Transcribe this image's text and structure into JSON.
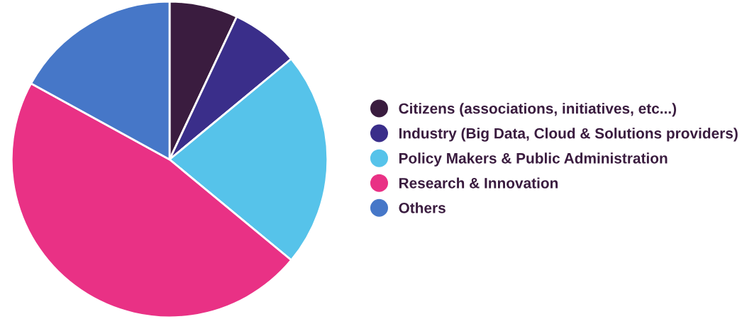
{
  "chart_data": {
    "type": "pie",
    "categories": [
      "Citizens (associations, initiatives, etc...)",
      "Industry (Big Data, Cloud & Solutions providers)",
      "Policy Makers & Public Administration",
      "Research & Innovation",
      "Others"
    ],
    "values": [
      7,
      7,
      22,
      47,
      17
    ],
    "colors": [
      "#3a1c3f",
      "#3a2e8a",
      "#56c3ea",
      "#e93185",
      "#4677c8"
    ],
    "legend": "right"
  }
}
